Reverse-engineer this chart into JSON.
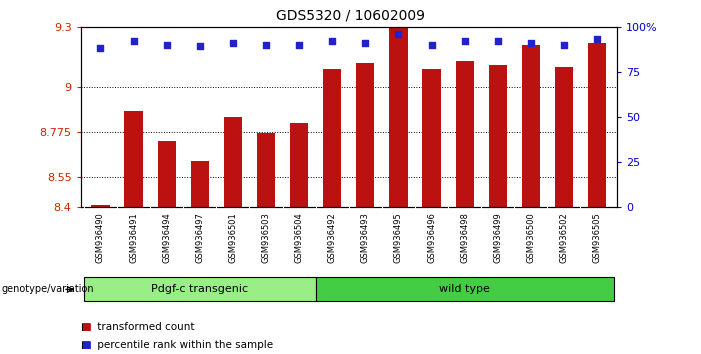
{
  "title": "GDS5320 / 10602009",
  "samples": [
    "GSM936490",
    "GSM936491",
    "GSM936494",
    "GSM936497",
    "GSM936501",
    "GSM936503",
    "GSM936504",
    "GSM936492",
    "GSM936493",
    "GSM936495",
    "GSM936496",
    "GSM936498",
    "GSM936499",
    "GSM936500",
    "GSM936502",
    "GSM936505"
  ],
  "transformed_count": [
    8.41,
    8.88,
    8.73,
    8.63,
    8.85,
    8.77,
    8.82,
    9.09,
    9.12,
    9.3,
    9.09,
    9.13,
    9.11,
    9.21,
    9.1,
    9.22
  ],
  "percentile_rank": [
    88,
    92,
    90,
    89,
    91,
    90,
    90,
    92,
    91,
    96,
    90,
    92,
    92,
    91,
    90,
    93
  ],
  "bar_color": "#bb1111",
  "dot_color": "#2222cc",
  "ylim_left": [
    8.4,
    9.3
  ],
  "ylim_right": [
    0,
    100
  ],
  "yticks_left": [
    8.4,
    8.55,
    8.775,
    9.0,
    9.3
  ],
  "yticks_right": [
    0,
    25,
    50,
    75,
    100
  ],
  "ytick_labels_left": [
    "8.4",
    "8.55",
    "8.775",
    "9",
    "9.3"
  ],
  "ytick_labels_right": [
    "0",
    "25",
    "50",
    "75",
    "100%"
  ],
  "groups": [
    {
      "label": "Pdgf-c transgenic",
      "start": 0,
      "end": 6,
      "color": "#99ee88"
    },
    {
      "label": "wild type",
      "start": 7,
      "end": 15,
      "color": "#44cc44"
    }
  ],
  "group_label_prefix": "genotype/variation",
  "legend_items": [
    {
      "label": "transformed count",
      "color": "#bb1111"
    },
    {
      "label": "percentile rank within the sample",
      "color": "#2222cc"
    }
  ],
  "background_color": "#ffffff",
  "tick_label_color_left": "#cc2200",
  "tick_label_color_right": "#0000cc",
  "bar_width": 0.55,
  "xtick_bg_color": "#c8c8c8"
}
